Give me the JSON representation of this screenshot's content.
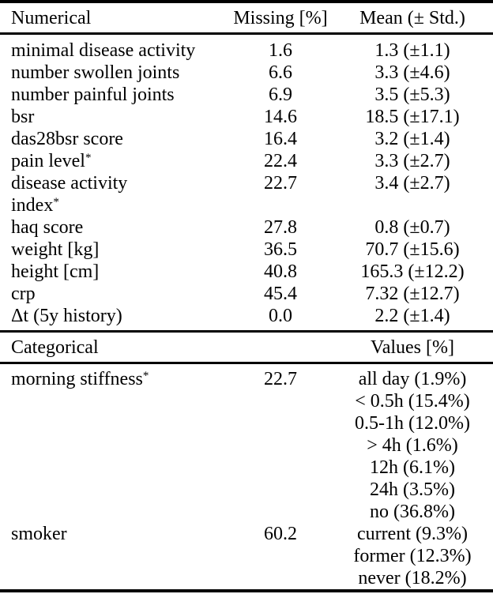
{
  "table": {
    "sections": [
      {
        "kind": "numerical",
        "header": {
          "col1": "Numerical",
          "col2": "Missing [%]",
          "col3": "Mean (± Std.)"
        },
        "rows": [
          {
            "feature": "minimal disease activity",
            "missing": "1.6",
            "mean": "1.3 (±1.1)"
          },
          {
            "feature": "number swollen joints",
            "missing": "6.6",
            "mean": "3.3 (±4.6)"
          },
          {
            "feature": "number painful joints",
            "missing": "6.9",
            "mean": "3.5 (±5.3)"
          },
          {
            "feature": "bsr",
            "missing": "14.6",
            "mean": "18.5 (±17.1)"
          },
          {
            "feature": "das28bsr score",
            "missing": "16.4",
            "mean": "3.2 (±1.4)"
          },
          {
            "feature": "pain level*",
            "missing": "22.4",
            "mean": "3.3 (±2.7)"
          },
          {
            "feature": "disease activity\nindex*",
            "missing": "22.7",
            "mean": "3.4 (±2.7)"
          },
          {
            "feature": "haq score",
            "missing": "27.8",
            "mean": "0.8 (±0.7)"
          },
          {
            "feature": "weight [kg]",
            "missing": "36.5",
            "mean": "70.7 (±15.6)"
          },
          {
            "feature": "height [cm]",
            "missing": "40.8",
            "mean": "165.3 (±12.2)"
          },
          {
            "feature": "crp",
            "missing": "45.4",
            "mean": "7.32 (±12.7)"
          },
          {
            "feature": "Δt (5y history)",
            "missing": "0.0",
            "mean": "2.2 (±1.4)"
          }
        ]
      },
      {
        "kind": "categorical",
        "header": {
          "col1": "Categorical",
          "col2": "",
          "col3": "Values [%]"
        },
        "rows": [
          {
            "feature": "morning stiffness*",
            "missing": "22.7",
            "values": [
              "all day (1.9%)",
              "< 0.5h (15.4%)",
              "0.5-1h (12.0%)",
              "> 4h (1.6%)",
              "12h (6.1%)",
              "24h (3.5%)",
              "no (36.8%)"
            ]
          },
          {
            "feature": "smoker",
            "missing": "60.2",
            "values": [
              "current (9.3%)",
              "former (12.3%)",
              "never (18.2%)"
            ]
          }
        ]
      }
    ]
  }
}
